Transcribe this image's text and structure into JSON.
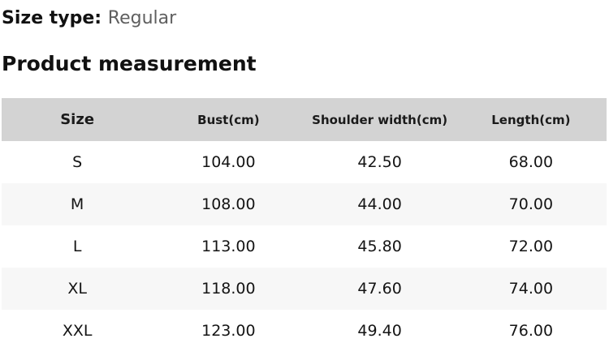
{
  "page": {
    "size_type_label": "Size type:",
    "size_type_value": "Regular",
    "section_title": "Product measurement"
  },
  "table": {
    "columns": [
      "Size",
      "Bust(cm)",
      "Shoulder width(cm)",
      "Length(cm)"
    ],
    "rows": [
      {
        "size": "S",
        "bust": "104.00",
        "shoulder_width": "42.50",
        "length": "68.00"
      },
      {
        "size": "M",
        "bust": "108.00",
        "shoulder_width": "44.00",
        "length": "70.00"
      },
      {
        "size": "L",
        "bust": "113.00",
        "shoulder_width": "45.80",
        "length": "72.00"
      },
      {
        "size": "XL",
        "bust": "118.00",
        "shoulder_width": "47.60",
        "length": "74.00"
      },
      {
        "size": "XXL",
        "bust": "123.00",
        "shoulder_width": "49.40",
        "length": "76.00"
      }
    ]
  },
  "colors": {
    "header_bg": "#d3d3d3",
    "alt_row_bg": "#f7f7f7",
    "muted_text": "#5f5f5f",
    "text": "#111111"
  }
}
